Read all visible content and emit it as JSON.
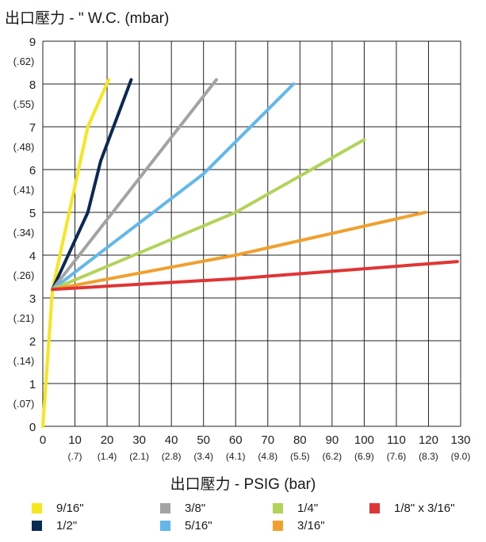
{
  "chart_data": {
    "type": "line",
    "title": "出口壓力 - \" W.C. (mbar)",
    "xlabel": "出口壓力 - PSIG (bar)",
    "ylabel": "",
    "xlim": [
      0,
      130
    ],
    "ylim": [
      0,
      9
    ],
    "grid": true,
    "x_ticks": [
      {
        "value": 0,
        "label": "0",
        "sub": ""
      },
      {
        "value": 10,
        "label": "10",
        "sub": "(.7)"
      },
      {
        "value": 20,
        "label": "20",
        "sub": "(1.4)"
      },
      {
        "value": 30,
        "label": "30",
        "sub": "(2.1)"
      },
      {
        "value": 40,
        "label": "40",
        "sub": "(2.8)"
      },
      {
        "value": 50,
        "label": "50",
        "sub": "(3.4)"
      },
      {
        "value": 60,
        "label": "60",
        "sub": "(4.1)"
      },
      {
        "value": 70,
        "label": "70",
        "sub": "(4.8)"
      },
      {
        "value": 80,
        "label": "80",
        "sub": "(5.5)"
      },
      {
        "value": 90,
        "label": "90",
        "sub": "(6.2)"
      },
      {
        "value": 100,
        "label": "100",
        "sub": "(6.9)"
      },
      {
        "value": 110,
        "label": "110",
        "sub": "(7.6)"
      },
      {
        "value": 120,
        "label": "120",
        "sub": "(8.3)"
      },
      {
        "value": 130,
        "label": "130",
        "sub": "(9.0)"
      }
    ],
    "y_ticks": [
      {
        "value": 0,
        "label": "0",
        "sub": ""
      },
      {
        "value": 1,
        "label": "1",
        "sub": "(.07)"
      },
      {
        "value": 2,
        "label": "2",
        "sub": "(.14)"
      },
      {
        "value": 3,
        "label": "3",
        "sub": "(.21)"
      },
      {
        "value": 4,
        "label": "4",
        "sub": "(.26)"
      },
      {
        "value": 5,
        "label": "5",
        "sub": "(.34)"
      },
      {
        "value": 6,
        "label": "6",
        "sub": "(.41)"
      },
      {
        "value": 7,
        "label": "7",
        "sub": "(.48)"
      },
      {
        "value": 8,
        "label": "8",
        "sub": "(.55)"
      },
      {
        "value": 9,
        "label": "9",
        "sub": "(.62)"
      }
    ],
    "series": [
      {
        "name": "9/16\"",
        "color": "#f5e61e",
        "points": [
          [
            0,
            0
          ],
          [
            3,
            3.2
          ],
          [
            14,
            7.0
          ],
          [
            20.5,
            8.1
          ]
        ]
      },
      {
        "name": "1/2\"",
        "color": "#0a2a55",
        "points": [
          [
            3,
            3.2
          ],
          [
            14,
            5.0
          ],
          [
            18,
            6.2
          ],
          [
            27.5,
            8.1
          ]
        ]
      },
      {
        "name": "3/8\"",
        "color": "#a3a3a3",
        "points": [
          [
            3,
            3.2
          ],
          [
            54,
            8.1
          ]
        ]
      },
      {
        "name": "5/16\"",
        "color": "#62b8ea",
        "points": [
          [
            3,
            3.2
          ],
          [
            50,
            5.9
          ],
          [
            78,
            8.0
          ]
        ]
      },
      {
        "name": "1/4\"",
        "color": "#b2d35a",
        "points": [
          [
            3,
            3.2
          ],
          [
            60,
            5.0
          ],
          [
            100,
            6.7
          ]
        ]
      },
      {
        "name": "3/16\"",
        "color": "#f0a02e",
        "points": [
          [
            3,
            3.2
          ],
          [
            60,
            4.0
          ],
          [
            119,
            5.0
          ]
        ]
      },
      {
        "name": "1/8\" x 3/16\"",
        "color": "#e03535",
        "points": [
          [
            3,
            3.2
          ],
          [
            60,
            3.45
          ],
          [
            129,
            3.85
          ]
        ]
      }
    ]
  }
}
